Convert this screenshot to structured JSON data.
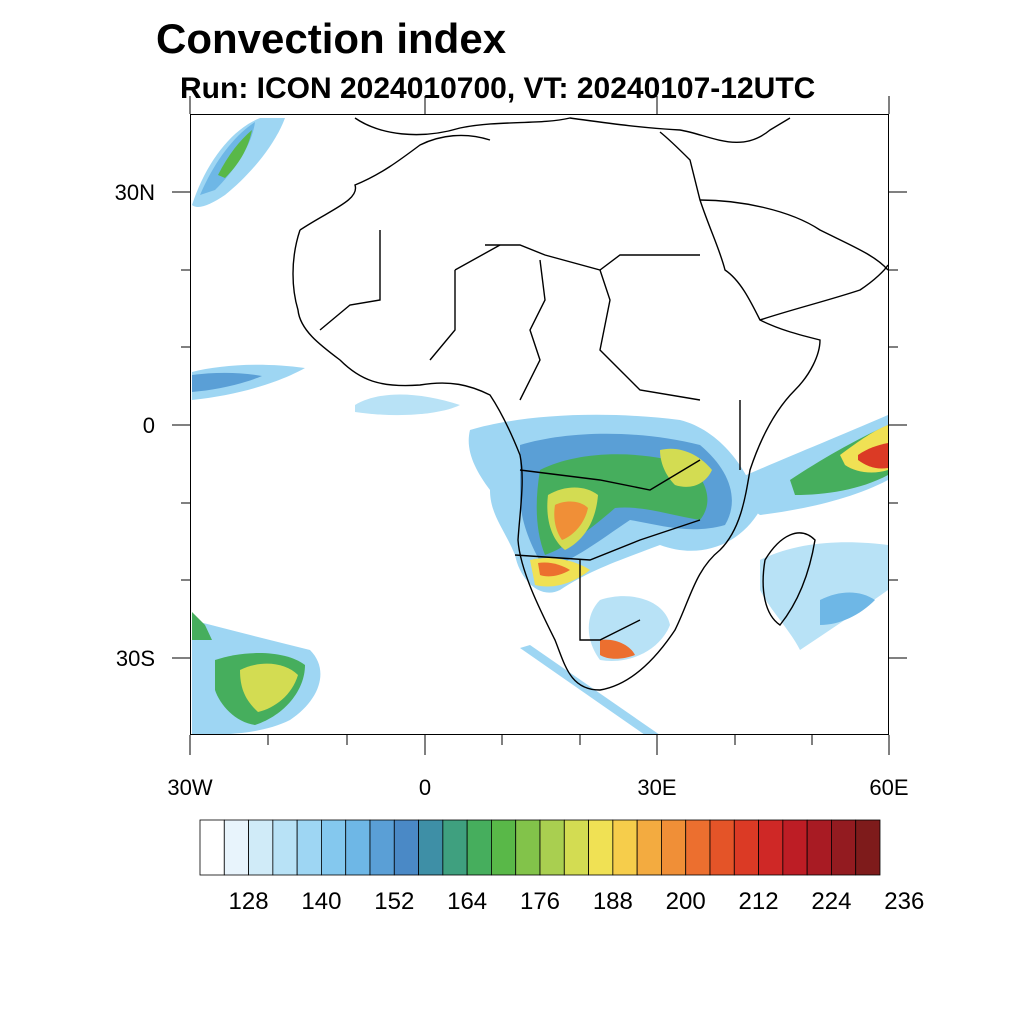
{
  "title": "Convection index",
  "subtitle": "Run: ICON 2024010700,  VT: 20240107-12UTC",
  "lat_labels": [
    "30N",
    "0",
    "30S"
  ],
  "lon_labels": [
    "30W",
    "0",
    "30E",
    "60E"
  ],
  "colorbar": {
    "colors": [
      "#ffffff",
      "#e8f4fc",
      "#d0ebf8",
      "#b8e2f6",
      "#9ed6f3",
      "#84c8ee",
      "#6eb7e6",
      "#5a9fd6",
      "#4a89c6",
      "#3e8fa6",
      "#3fa07f",
      "#46ae5d",
      "#59b848",
      "#82c34a",
      "#a9cf50",
      "#d3dc52",
      "#f0e154",
      "#f6cd4b",
      "#f3ab40",
      "#f08f37",
      "#ec6f2f",
      "#e45428",
      "#db3a25",
      "#cf2826",
      "#bd1d25",
      "#a81b23",
      "#931b20",
      "#7e1b1b"
    ],
    "labels": [
      "128",
      "140",
      "152",
      "164",
      "176",
      "188",
      "200",
      "212",
      "224",
      "236"
    ]
  },
  "map_extent": {
    "lon": [
      -30,
      60
    ],
    "lat": [
      -40,
      40
    ]
  }
}
